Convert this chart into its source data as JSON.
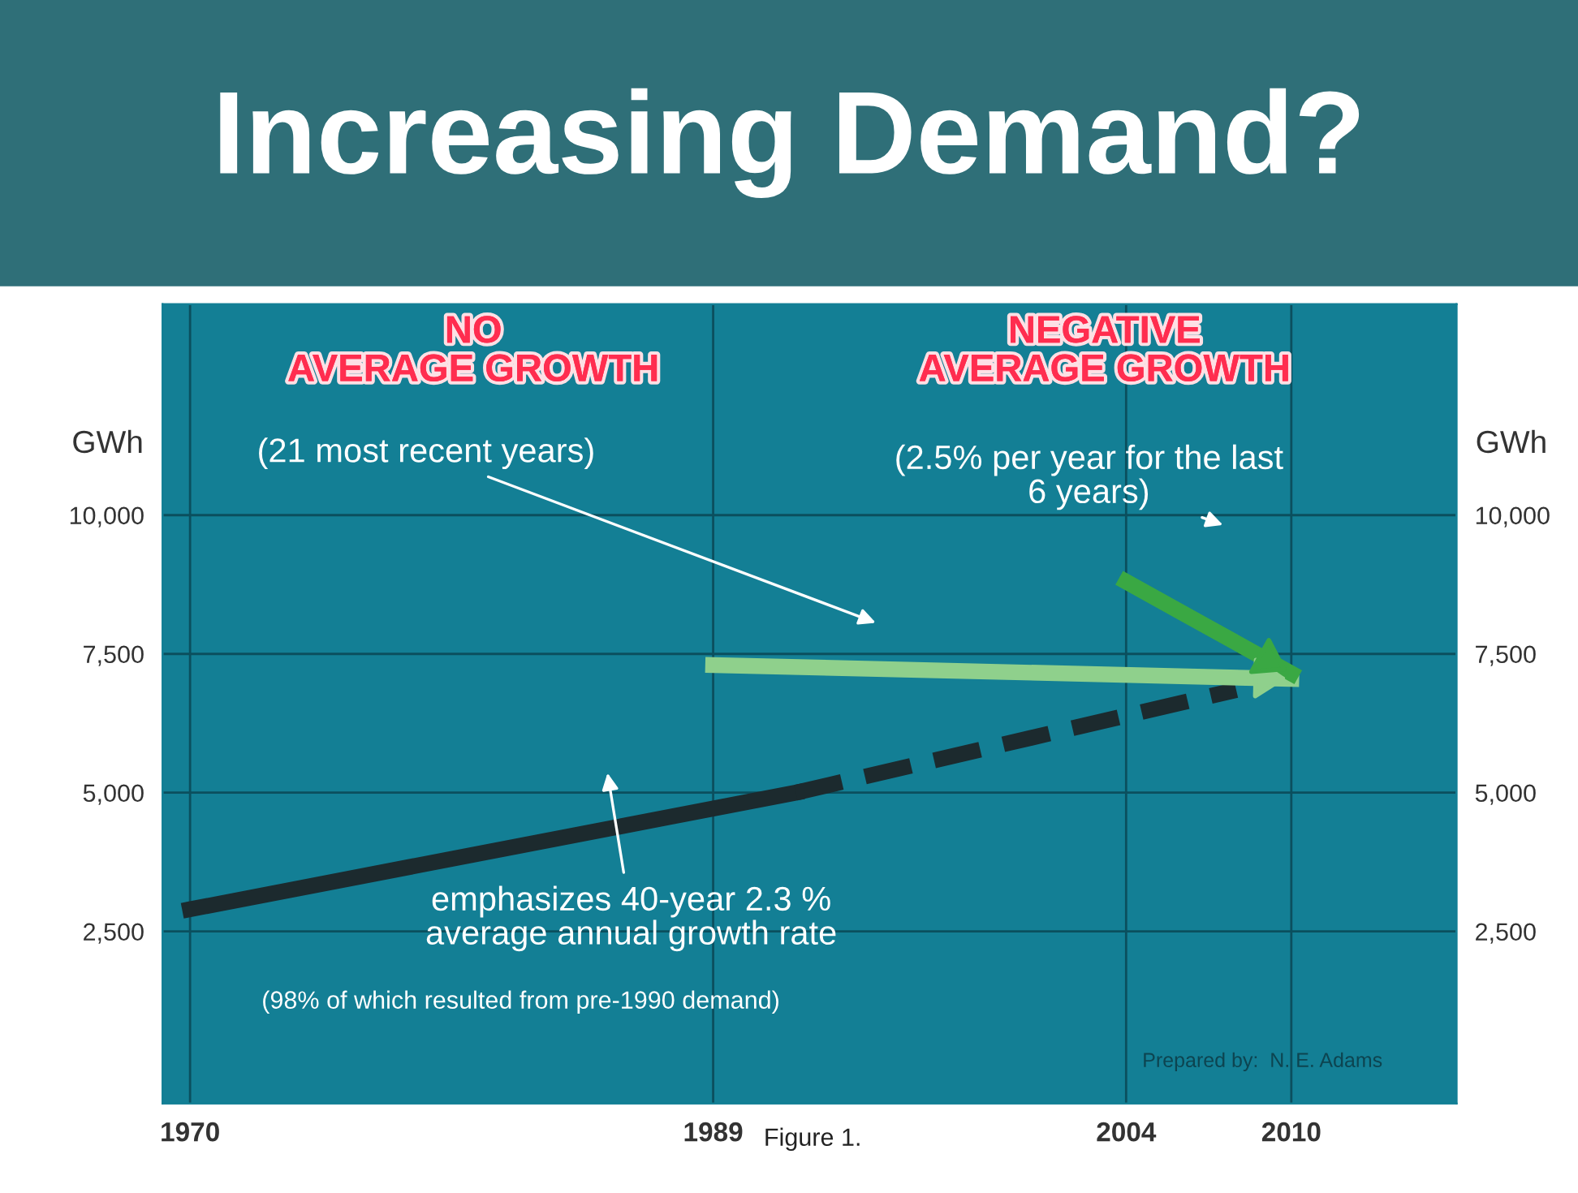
{
  "chart_data": {
    "type": "line",
    "title": "Increasing Demand?",
    "ylabel": "GWh",
    "y2label": "GWh",
    "xlim": [
      1969,
      2016
    ],
    "xticks": [
      1970,
      1989,
      2004,
      2010
    ],
    "ylim": [
      -600,
      13800
    ],
    "yticks": [
      {
        "value": 2500,
        "label": "2,500"
      },
      {
        "value": 5000,
        "label": "5,000"
      },
      {
        "value": 7500,
        "label": "7,500"
      },
      {
        "value": 10000,
        "label": "10,000"
      }
    ],
    "y2lim": [
      -600,
      13800
    ],
    "y2ticks": [
      {
        "value": 2500,
        "label": "2,500"
      },
      {
        "value": 5000,
        "label": "5,000"
      },
      {
        "value": 7500,
        "label": "7,500"
      },
      {
        "value": 10000,
        "label": "10,000"
      }
    ],
    "grid": true,
    "series": [
      {
        "color": "#1c2a2e",
        "x": [
          1970,
          1992
        ],
        "values": [
          2900,
          5000
        ],
        "line_style": "solid"
      },
      {
        "color": "#1c2a2e",
        "x": [
          1992,
          2008
        ],
        "values": [
          5000,
          6850
        ],
        "line_style": "dashed"
      },
      {
        "color": "#8fd08c",
        "x": [
          1989,
          2010
        ],
        "values": [
          7300,
          7050
        ],
        "line_style": "solid"
      },
      {
        "color": "#3aa843",
        "x": [
          2004,
          2010
        ],
        "values": [
          8800,
          7150
        ],
        "line_style": "solid"
      }
    ],
    "annotations": [
      "NO\nAVERAGE GROWTH",
      "NEGATIVE\nAVERAGE GROWTH",
      "(21 most recent years)",
      "(2.5% per year for the last\n6 years)",
      "emphasizes 40-year 2.3 %\naverage annual growth rate",
      "(98% of which resulted from pre-1990 demand)",
      "Prepared by:  N. E. Adams",
      "Figure 1."
    ]
  }
}
